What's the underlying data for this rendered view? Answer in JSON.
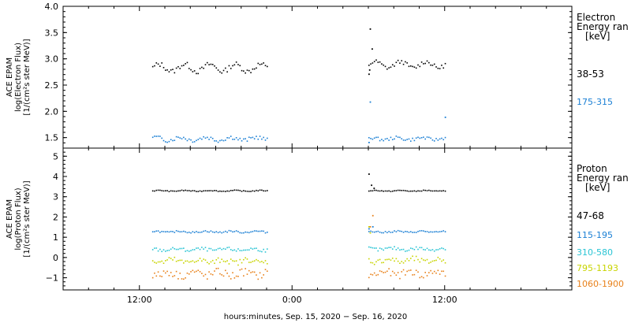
{
  "chart_data": [
    {
      "type": "scatter",
      "ylabel_lines": [
        "ACE EPAM",
        "log(Electron Flux)",
        "[1/(cm²s ster MeV)]"
      ],
      "ylim": [
        1.3,
        4.0
      ],
      "yticks": [
        "4.0",
        "3.5",
        "3.0",
        "2.5",
        "2.0",
        "1.5"
      ],
      "ytick_values": [
        4.0,
        3.5,
        3.0,
        2.5,
        2.0,
        1.5
      ],
      "legend_title": [
        "Electron",
        "Energy ran",
        "[keV]"
      ],
      "series": [
        {
          "name": "38-53",
          "color": "#000000",
          "segments": [
            {
              "x": [
                -23,
                -14
              ],
              "base": 2.84,
              "amp": 0.07,
              "noise": 0.05
            },
            {
              "x": [
                -6,
                0
              ],
              "base": 2.9,
              "amp": 0.06,
              "noise": 0.04
            }
          ],
          "spikes": [
            [
              -6,
              2.72
            ],
            [
              -5.95,
              2.8
            ],
            [
              -5.9,
              3.58
            ],
            [
              -5.75,
              3.2
            ]
          ]
        },
        {
          "name": "175-315",
          "color": "#1a7fd4",
          "segments": [
            {
              "x": [
                -23,
                -14
              ],
              "base": 1.49,
              "amp": 0.03,
              "noise": 0.04
            },
            {
              "x": [
                -6,
                0
              ],
              "base": 1.49,
              "amp": 0.02,
              "noise": 0.03
            }
          ],
          "spikes": [
            [
              -6,
              1.42
            ],
            [
              -5.9,
              2.19
            ],
            [
              0,
              1.9
            ]
          ]
        }
      ]
    },
    {
      "type": "scatter",
      "ylabel_lines": [
        "ACE EPAM",
        "log(Proton Flux)",
        "[1/(cm²s ster MeV)]"
      ],
      "ylim": [
        -1.6,
        5.4
      ],
      "yticks": [
        "5",
        "4",
        "3",
        "2",
        "1",
        "0",
        "−1"
      ],
      "ytick_values": [
        5,
        4,
        3,
        2,
        1,
        0,
        -1
      ],
      "legend_title": [
        "Proton",
        "Energy ran",
        "[keV]"
      ],
      "series": [
        {
          "name": "47-68",
          "color": "#000000",
          "segments": [
            {
              "x": [
                -23,
                -14
              ],
              "base": 3.32,
              "amp": 0.02,
              "noise": 0.02
            },
            {
              "x": [
                -6,
                0
              ],
              "base": 3.32,
              "amp": 0.02,
              "noise": 0.02
            }
          ],
          "spikes": [
            [
              -6,
              4.15
            ],
            [
              -5.8,
              3.6
            ],
            [
              -5.6,
              3.45
            ]
          ]
        },
        {
          "name": "115-195",
          "color": "#1a7fd4",
          "segments": [
            {
              "x": [
                -23,
                -14
              ],
              "base": 1.3,
              "amp": 0.03,
              "noise": 0.04
            },
            {
              "x": [
                -6,
                0
              ],
              "base": 1.3,
              "amp": 0.03,
              "noise": 0.04
            }
          ],
          "spikes": [
            [
              -6,
              1.45
            ],
            [
              -5.7,
              1.55
            ]
          ]
        },
        {
          "name": "310-580",
          "color": "#29c4d4",
          "segments": [
            {
              "x": [
                -23,
                -14
              ],
              "base": 0.42,
              "amp": 0.04,
              "noise": 0.08
            },
            {
              "x": [
                -6,
                0
              ],
              "base": 0.45,
              "amp": 0.04,
              "noise": 0.08
            }
          ],
          "spikes": []
        },
        {
          "name": "795-1193",
          "color": "#c8d400",
          "segments": [
            {
              "x": [
                -23,
                -14
              ],
              "base": -0.15,
              "amp": 0.08,
              "noise": 0.14
            },
            {
              "x": [
                -6,
                0
              ],
              "base": -0.12,
              "amp": 0.08,
              "noise": 0.14
            }
          ],
          "spikes": [
            [
              -6,
              1.55
            ],
            [
              -5.9,
              1.25
            ]
          ]
        },
        {
          "name": "1060-1900",
          "color": "#e8811a",
          "segments": [
            {
              "x": [
                -23,
                -14
              ],
              "base": -0.78,
              "amp": 0.1,
              "noise": 0.2
            },
            {
              "x": [
                -6,
                0
              ],
              "base": -0.75,
              "amp": 0.1,
              "noise": 0.18
            }
          ],
          "spikes": [
            [
              -5.7,
              2.1
            ],
            [
              -5.9,
              1.55
            ]
          ]
        }
      ]
    }
  ],
  "xaxis": {
    "xlim": [
      -30,
      10
    ],
    "unit": "hours relative to final sample",
    "ticks": [
      -24,
      -12,
      0
    ],
    "tick_labels": [
      "12:00",
      "0:00",
      "12:00"
    ],
    "label": "hours:minutes, Sep. 15, 2020 − Sep. 16, 2020"
  }
}
